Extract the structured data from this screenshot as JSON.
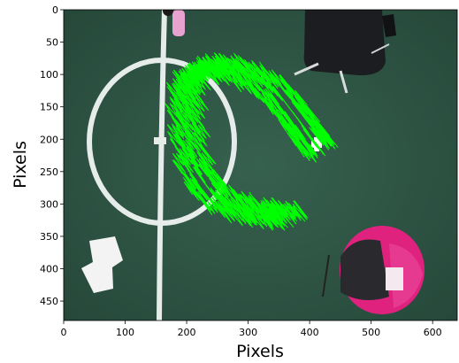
{
  "chart_data": {
    "type": "scatter",
    "xlabel": "Pixels",
    "ylabel": "Pixels",
    "xlim": [
      0,
      640
    ],
    "ylim": [
      480,
      0
    ],
    "xticks": [
      0,
      100,
      200,
      300,
      400,
      500,
      600
    ],
    "yticks": [
      0,
      50,
      100,
      150,
      200,
      250,
      300,
      350,
      400,
      450
    ],
    "background_image": "overhead camera view of green carpet floor with white field lines, a chair, a pink backpack and papers",
    "series": [
      {
        "color": "#00ff00",
        "marker": "trajectory-line",
        "points": [
          [
            415,
            212
          ],
          [
            402,
            200
          ],
          [
            390,
            180
          ],
          [
            372,
            158
          ],
          [
            350,
            130
          ],
          [
            320,
            108
          ],
          [
            285,
            95
          ],
          [
            250,
            88
          ],
          [
            222,
            92
          ],
          [
            205,
            105
          ],
          [
            198,
            130
          ],
          [
            200,
            170
          ],
          [
            205,
            215
          ],
          [
            220,
            255
          ],
          [
            240,
            282
          ],
          [
            270,
            300
          ],
          [
            305,
            310
          ],
          [
            340,
            315
          ],
          [
            375,
            318
          ]
        ]
      }
    ],
    "colors": {
      "carpet": "#2f5a47",
      "field_line": "#e6ecea",
      "trajectory": "#00ff00",
      "backpack": "#e0227f",
      "frame": "#000000"
    }
  }
}
